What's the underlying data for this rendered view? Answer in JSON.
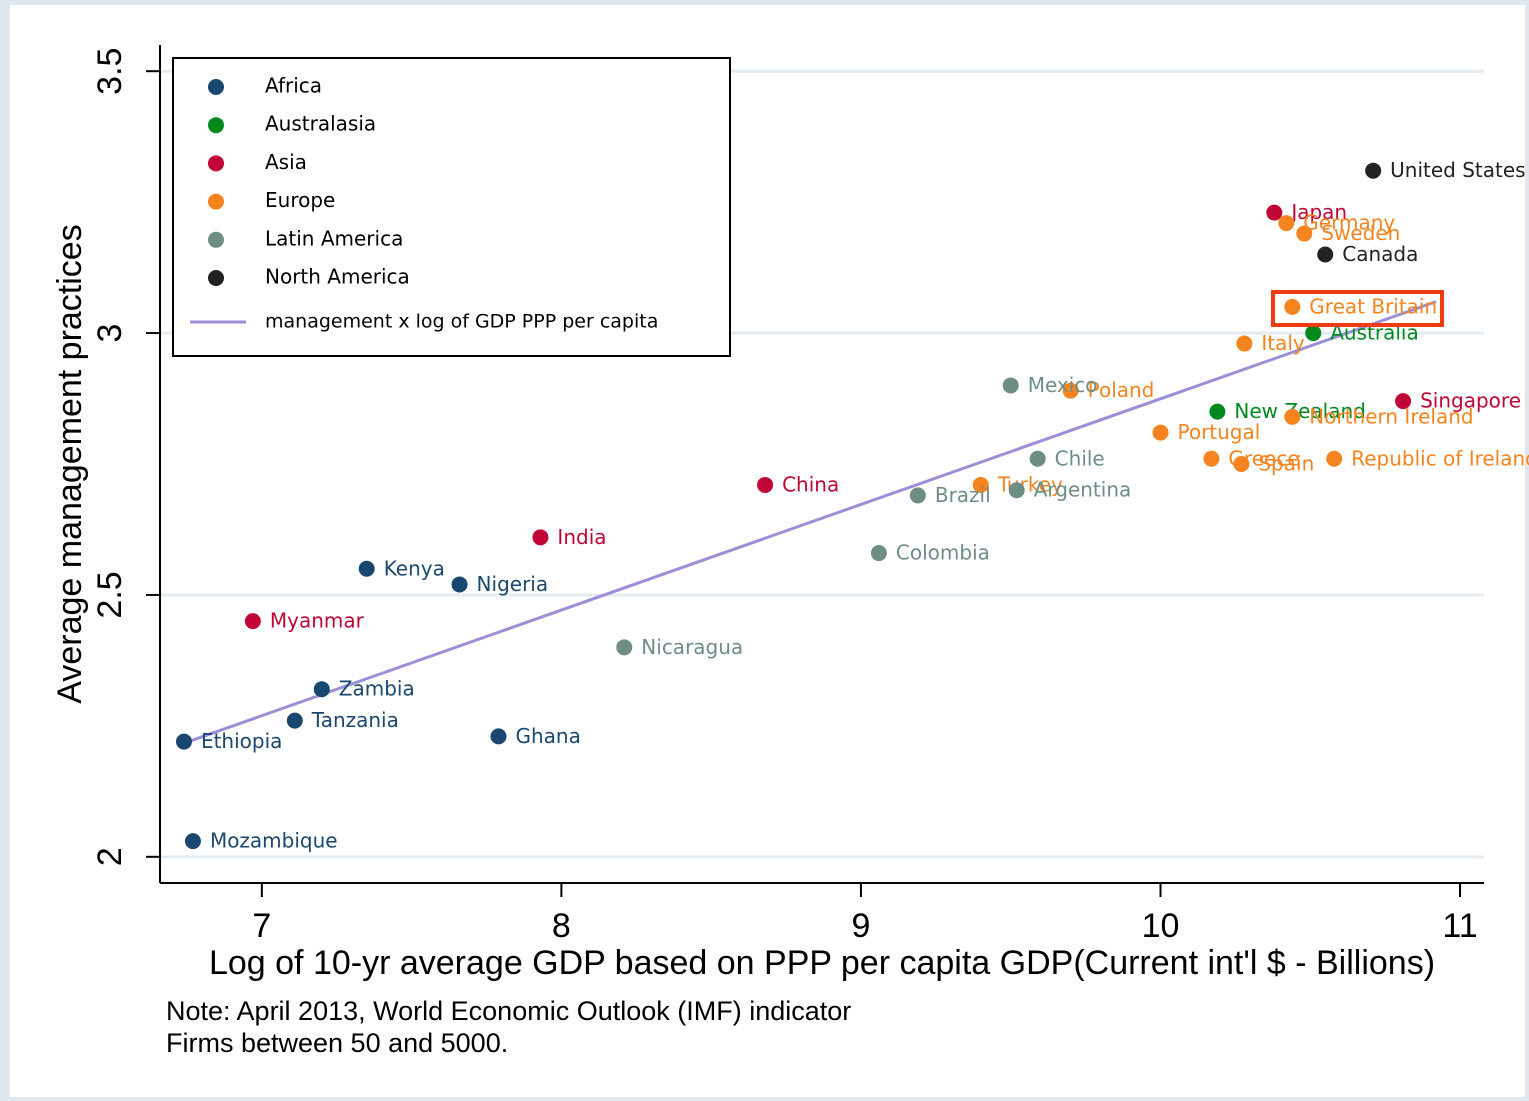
{
  "chart_data": {
    "type": "scatter",
    "xlabel": "Log of 10-yr average GDP based on PPP per capita GDP(Current int'l $ - Billions)",
    "ylabel": "Average management practices",
    "notes": [
      "Note: April 2013, World Economic Outlook (IMF) indicator",
      "Firms between 50 and 5000."
    ],
    "xlim": [
      6.66,
      11.08
    ],
    "ylim": [
      1.95,
      3.55
    ],
    "xticks": [
      7,
      8,
      9,
      10,
      11
    ],
    "yticks": [
      2,
      2.5,
      3,
      3.5
    ],
    "grid": true,
    "series": [
      {
        "name": "Africa",
        "color": "#1a476f",
        "labels": [
          "Ethiopia",
          "Mozambique",
          "Kenya",
          "Nigeria",
          "Zambia",
          "Tanzania",
          "Ghana"
        ],
        "x": [
          6.74,
          6.77,
          7.35,
          7.66,
          7.2,
          7.11,
          7.79
        ],
        "y": [
          2.22,
          2.03,
          2.55,
          2.52,
          2.32,
          2.26,
          2.23
        ]
      },
      {
        "name": "Australasia",
        "color": "#008a1e",
        "labels": [
          "New Zealand",
          "Australia"
        ],
        "x": [
          10.19,
          10.51
        ],
        "y": [
          2.85,
          3.0
        ]
      },
      {
        "name": "Asia",
        "color": "#c10534",
        "labels": [
          "Myanmar",
          "India",
          "China",
          "Japan",
          "Singapore"
        ],
        "x": [
          6.97,
          7.93,
          8.68,
          10.38,
          10.81
        ],
        "y": [
          2.45,
          2.61,
          2.71,
          3.23,
          2.87
        ]
      },
      {
        "name": "Europe",
        "color": "#f5841f",
        "labels": [
          "Turkey",
          "Poland",
          "Portugal",
          "Greece",
          "Spain",
          "Italy",
          "Great Britain",
          "Germany",
          "Sweden",
          "Northern Ireland",
          "Republic of Ireland"
        ],
        "x": [
          9.4,
          9.7,
          10.0,
          10.17,
          10.27,
          10.28,
          10.44,
          10.42,
          10.48,
          10.44,
          10.58
        ],
        "y": [
          2.71,
          2.89,
          2.81,
          2.76,
          2.75,
          2.98,
          3.05,
          3.21,
          3.19,
          2.84,
          2.76
        ]
      },
      {
        "name": "Latin America",
        "color": "#6e8e84",
        "labels": [
          "Nicaragua",
          "Colombia",
          "Brazil",
          "Argentina",
          "Chile",
          "Mexico"
        ],
        "x": [
          8.21,
          9.06,
          9.19,
          9.52,
          9.59,
          9.5
        ],
        "y": [
          2.4,
          2.58,
          2.69,
          2.7,
          2.76,
          2.9
        ]
      },
      {
        "name": "North America",
        "color": "#222222",
        "labels": [
          "United States",
          "Canada"
        ],
        "x": [
          10.71,
          10.55
        ],
        "y": [
          3.31,
          3.15
        ]
      }
    ],
    "fit": {
      "name": "management x log of GDP PPP per capita",
      "color": "#9b8fd8",
      "x": [
        6.74,
        10.92
      ],
      "y": [
        2.217,
        3.06
      ]
    }
  }
}
